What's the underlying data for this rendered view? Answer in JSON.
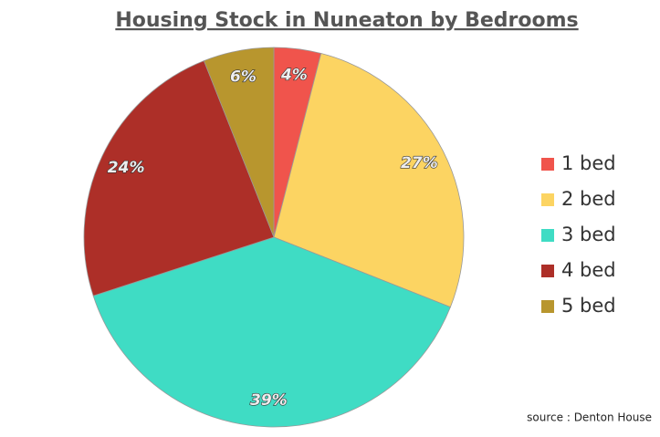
{
  "chart_data": {
    "type": "pie",
    "title": "Housing Stock in Nuneaton by Bedrooms",
    "categories": [
      "1 bed",
      "2 bed",
      "3 bed",
      "4 bed",
      "5 bed"
    ],
    "values": [
      4,
      27,
      39,
      24,
      6
    ],
    "value_labels": [
      "4%",
      "27%",
      "39%",
      "24%",
      "6%"
    ],
    "colors": [
      "#f0544c",
      "#fcd462",
      "#3fdcc4",
      "#ad2f28",
      "#b8962e"
    ],
    "legend": "right",
    "source": "source : Denton House"
  }
}
